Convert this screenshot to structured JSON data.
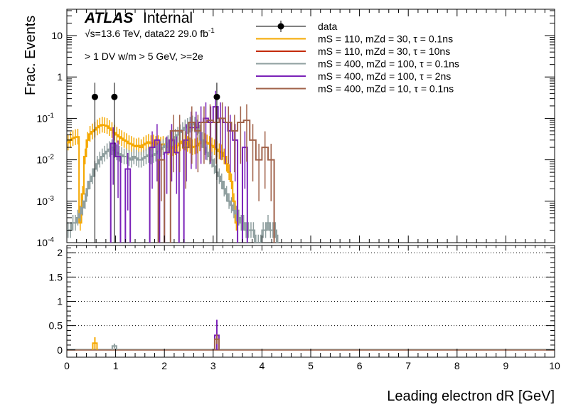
{
  "chart_data": [
    {
      "type": "line",
      "panel": "main",
      "ylabel": "Frac. Events",
      "yscale": "log",
      "ylim": [
        0.0001,
        50
      ],
      "xlim": [
        0,
        10
      ],
      "yticks": [
        {
          "value": 10,
          "label": "10"
        },
        {
          "value": 1,
          "label": "1"
        },
        {
          "value": 0.1,
          "label": "10^-1"
        },
        {
          "value": 0.01,
          "label": "10^-2"
        },
        {
          "value": 0.001,
          "label": "10^-3"
        },
        {
          "value": 0.0001,
          "label": "10^-4"
        }
      ],
      "atlas_label": "ATLAS",
      "atlas_sub": "Internal",
      "energy_text": "√s=13.6 TeV, data22 29.0 fb",
      "energy_sup": "-1",
      "selection_text": "> 1 DV w/m > 5 GeV, >=2e",
      "legend_position": "top-right",
      "data_points": {
        "name": "data",
        "color": "#000000",
        "points": [
          {
            "x": 0.575,
            "y": 0.33
          },
          {
            "x": 0.975,
            "y": 0.33
          },
          {
            "x": 3.075,
            "y": 0.33
          }
        ]
      },
      "series": [
        {
          "name": "mS = 110, mZd = 30, τ = 0.1ns",
          "color": "#f5a800",
          "bin_width": 0.05,
          "x_start": 0.0,
          "values": [
            0.026,
            0.03,
            0.033,
            0.035,
            0.036,
            0.0003,
            0.0015,
            0.012,
            0.03,
            0.042,
            0.048,
            0.053,
            0.06,
            0.066,
            0.07,
            0.068,
            0.065,
            0.058,
            0.052,
            0.045,
            0.04,
            0.036,
            0.033,
            0.03,
            0.028,
            0.025,
            0.024,
            0.022,
            0.021,
            0.022,
            0.02,
            0.023,
            0.025,
            0.027,
            0.025,
            0.026,
            0.024,
            0.025,
            0.023,
            0.024,
            0.022,
            0.02,
            0.021,
            0.019,
            0.02,
            0.022,
            0.025,
            0.028,
            0.026,
            0.024,
            0.022,
            0.02,
            0.021,
            0.022,
            0.025,
            0.03,
            0.028,
            0.026,
            0.024,
            0.022,
            0.02,
            0.018,
            0.016,
            0.015,
            0.012,
            0.008,
            0.005,
            0.003,
            0.001,
            0.0003,
            0.0004
          ]
        },
        {
          "name": "mS = 110, mZd = 30, τ = 10ns",
          "color": "#c42b05",
          "bin_width": 0.05,
          "x_start": 0.0,
          "values": []
        },
        {
          "name": "mS = 400, mZd = 100, τ = 0.1ns",
          "color": "#8f9f9f",
          "bin_width": 0.05,
          "x_start": 0.0,
          "values": [
            0.0002,
            0.0002,
            0.0003,
            0.0003,
            0.0004,
            0.0005,
            0.0007,
            0.001,
            0.002,
            0.003,
            0.004,
            0.006,
            0.008,
            0.01,
            0.012,
            0.014,
            0.016,
            0.018,
            0.02,
            0.017,
            0.015,
            0.014,
            0.013,
            0.012,
            0.012,
            0.011,
            0.01,
            0.012,
            0.011,
            0.01,
            0.01,
            0.011,
            0.012,
            0.013,
            0.012,
            0.013,
            0.014,
            0.016,
            0.018,
            0.02,
            0.022,
            0.025,
            0.028,
            0.032,
            0.036,
            0.04,
            0.046,
            0.052,
            0.06,
            0.065,
            0.07,
            0.075,
            0.07,
            0.06,
            0.045,
            0.03,
            0.02,
            0.015,
            0.012,
            0.01,
            0.007,
            0.005,
            0.004,
            0.003,
            0.002,
            0.0015,
            0.001,
            0.0008,
            0.0006,
            0.0005,
            0.0004,
            0.0003,
            0.0003,
            0.0002,
            0.0002,
            0.0002,
            0.0002,
            0.0001,
            0.0001,
            0.0001,
            0.0002,
            0.0002,
            0.0003,
            0.0002,
            0.0002,
            0.0002,
            0.0001
          ]
        },
        {
          "name": "mS = 400, mZd = 100, τ = 2ns",
          "color": "#7a21b8",
          "bin_width": 0.1,
          "x_start": 0.0,
          "values": [
            0,
            0,
            0,
            0,
            0,
            0,
            0,
            0,
            0,
            0.025,
            0.012,
            0,
            0.006,
            0,
            0,
            0,
            0,
            0.02,
            0.03,
            0,
            0.015,
            0.03,
            0.015,
            0,
            0.03,
            0.06,
            0.06,
            0.08,
            0.1,
            0.08,
            0.19,
            0.1,
            0.08,
            0.05,
            0.03,
            0,
            0.02,
            0,
            0,
            0,
            0,
            0,
            0
          ]
        },
        {
          "name": "mS = 400, mZd = 10, τ = 0.1ns",
          "color": "#a0624a",
          "bin_width": 0.125,
          "x_start": 0.0,
          "values": [
            0,
            0,
            0,
            0,
            0,
            0,
            0,
            0,
            0,
            0,
            0,
            0,
            0,
            0,
            0,
            0.01,
            0,
            0.05,
            0.05,
            0.02,
            0.08,
            0.05,
            0.08,
            0.09,
            0.08,
            0.1,
            0.08,
            0.05,
            0.08,
            0.09,
            0.03,
            0.01,
            0.02,
            0.01,
            0,
            0,
            0,
            0
          ]
        }
      ],
      "xlabel": ""
    },
    {
      "type": "line",
      "panel": "ratio",
      "xlabel": "Leading electron dR [GeV]",
      "xlim": [
        0,
        10
      ],
      "ylim": [
        -0.15,
        2.15
      ],
      "yticks": [
        0,
        0.5,
        1,
        1.5,
        2
      ],
      "xticks": [
        0,
        1,
        2,
        3,
        4,
        5,
        6,
        7,
        8,
        9,
        10
      ],
      "ratio_points": [
        {
          "x": 0.575,
          "y": 0.14,
          "color": "#f5a800",
          "err": 0.12
        },
        {
          "x": 0.975,
          "y": 0.08,
          "color": "#8f9f9f",
          "err": 0.05
        },
        {
          "x": 3.075,
          "y": 0.3,
          "color": "#7a21b8",
          "err": 0.32
        },
        {
          "x": 3.075,
          "y": 0.22,
          "color": "#a0624a",
          "err": 0.1
        }
      ],
      "baseline_color": "#a0624a"
    }
  ]
}
